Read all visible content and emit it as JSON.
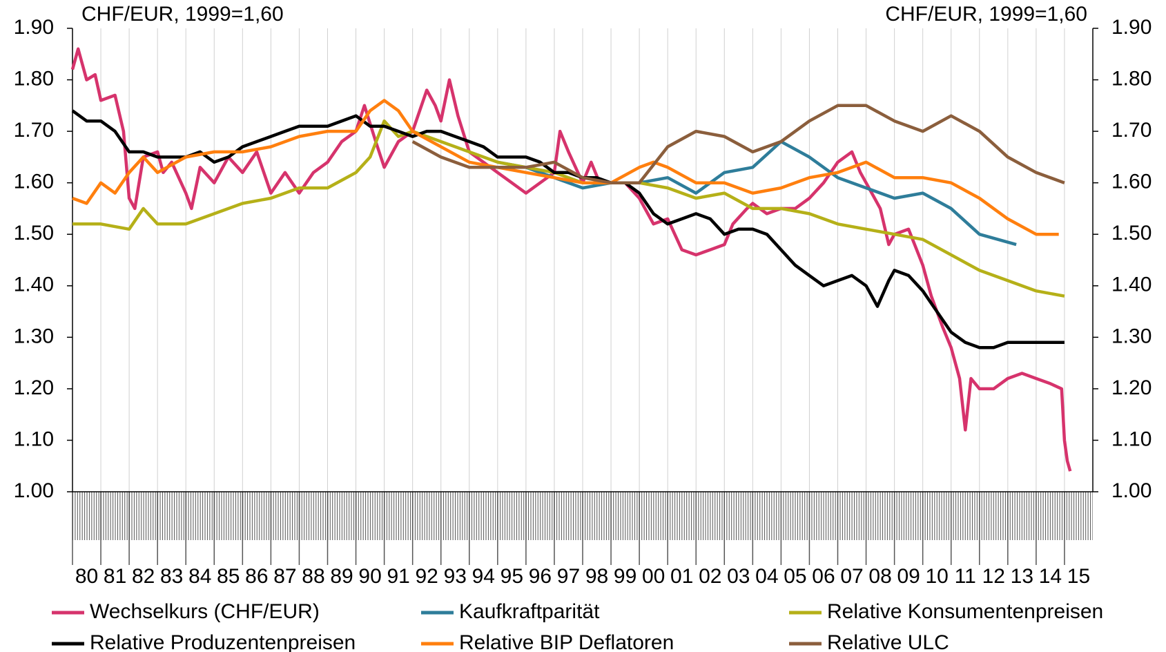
{
  "chart_data": {
    "type": "line",
    "y_label": "CHF/EUR, 1999=1,60",
    "y2_label": "CHF/EUR, 1999=1,60",
    "xlim": [
      1980,
      2016
    ],
    "xticks": [
      {
        "value": 1980,
        "label": "80"
      },
      {
        "value": 1981,
        "label": "81"
      },
      {
        "value": 1982,
        "label": "82"
      },
      {
        "value": 1983,
        "label": "83"
      },
      {
        "value": 1984,
        "label": "84"
      },
      {
        "value": 1985,
        "label": "85"
      },
      {
        "value": 1986,
        "label": "86"
      },
      {
        "value": 1987,
        "label": "87"
      },
      {
        "value": 1988,
        "label": "88"
      },
      {
        "value": 1989,
        "label": "89"
      },
      {
        "value": 1990,
        "label": "90"
      },
      {
        "value": 1991,
        "label": "91"
      },
      {
        "value": 1992,
        "label": "92"
      },
      {
        "value": 1993,
        "label": "93"
      },
      {
        "value": 1994,
        "label": "94"
      },
      {
        "value": 1995,
        "label": "95"
      },
      {
        "value": 1996,
        "label": "96"
      },
      {
        "value": 1997,
        "label": "97"
      },
      {
        "value": 1998,
        "label": "98"
      },
      {
        "value": 1999,
        "label": "99"
      },
      {
        "value": 2000,
        "label": "00"
      },
      {
        "value": 2001,
        "label": "01"
      },
      {
        "value": 2002,
        "label": "02"
      },
      {
        "value": 2003,
        "label": "03"
      },
      {
        "value": 2004,
        "label": "04"
      },
      {
        "value": 2005,
        "label": "05"
      },
      {
        "value": 2006,
        "label": "06"
      },
      {
        "value": 2007,
        "label": "07"
      },
      {
        "value": 2008,
        "label": "08"
      },
      {
        "value": 2009,
        "label": "09"
      },
      {
        "value": 2010,
        "label": "10"
      },
      {
        "value": 2011,
        "label": "11"
      },
      {
        "value": 2012,
        "label": "12"
      },
      {
        "value": 2013,
        "label": "13"
      },
      {
        "value": 2014,
        "label": "14"
      },
      {
        "value": 2015,
        "label": "15"
      }
    ],
    "ylim": [
      1.0,
      1.9
    ],
    "yticks": [
      {
        "value": 1.0,
        "label": "1.00"
      },
      {
        "value": 1.1,
        "label": "1.10"
      },
      {
        "value": 1.2,
        "label": "1.20"
      },
      {
        "value": 1.3,
        "label": "1.30"
      },
      {
        "value": 1.4,
        "label": "1.40"
      },
      {
        "value": 1.5,
        "label": "1.50"
      },
      {
        "value": 1.6,
        "label": "1.60"
      },
      {
        "value": 1.7,
        "label": "1.70"
      },
      {
        "value": 1.8,
        "label": "1.80"
      },
      {
        "value": 1.9,
        "label": "1.90"
      }
    ],
    "y2lim": [
      1.0,
      1.9
    ],
    "y2ticks": [
      {
        "value": 1.0,
        "label": "1.00"
      },
      {
        "value": 1.1,
        "label": "1.10"
      },
      {
        "value": 1.2,
        "label": "1.20"
      },
      {
        "value": 1.3,
        "label": "1.30"
      },
      {
        "value": 1.4,
        "label": "1.40"
      },
      {
        "value": 1.5,
        "label": "1.50"
      },
      {
        "value": 1.6,
        "label": "1.60"
      },
      {
        "value": 1.7,
        "label": "1.70"
      },
      {
        "value": 1.8,
        "label": "1.80"
      },
      {
        "value": 1.9,
        "label": "1.90"
      }
    ],
    "grid": true,
    "series": [
      {
        "name": "Wechselkurs (CHF/EUR)",
        "color": "#d6336c",
        "x": [
          1980,
          1980.2,
          1980.5,
          1980.8,
          1981,
          1981.5,
          1981.8,
          1982,
          1982.2,
          1982.5,
          1983,
          1983.2,
          1983.5,
          1984,
          1984.2,
          1984.5,
          1985,
          1985.5,
          1986,
          1986.5,
          1987,
          1987.5,
          1988,
          1988.5,
          1989,
          1989.5,
          1990,
          1990.3,
          1990.7,
          1991,
          1991.5,
          1992,
          1992.5,
          1992.8,
          1993,
          1993.3,
          1993.6,
          1994,
          1994.5,
          1995,
          1995.5,
          1996,
          1996.5,
          1997,
          1997.2,
          1997.5,
          1998,
          1998.3,
          1998.6,
          1999,
          1999.5,
          2000,
          2000.5,
          2001,
          2001.5,
          2002,
          2002.5,
          2003,
          2003.3,
          2003.8,
          2004,
          2004.5,
          2005,
          2005.5,
          2006,
          2006.5,
          2007,
          2007.5,
          2007.8,
          2008,
          2008.5,
          2008.8,
          2009,
          2009.5,
          2010,
          2010.3,
          2010.7,
          2011,
          2011.3,
          2011.5,
          2011.7,
          2012,
          2012.5,
          2013,
          2013.5,
          2014,
          2014.5,
          2014.9,
          2015,
          2015.1,
          2015.2
        ],
        "values": [
          1.82,
          1.86,
          1.8,
          1.81,
          1.76,
          1.77,
          1.7,
          1.57,
          1.55,
          1.65,
          1.66,
          1.62,
          1.64,
          1.58,
          1.55,
          1.63,
          1.6,
          1.65,
          1.62,
          1.66,
          1.58,
          1.62,
          1.58,
          1.62,
          1.64,
          1.68,
          1.7,
          1.75,
          1.68,
          1.63,
          1.68,
          1.7,
          1.78,
          1.75,
          1.72,
          1.8,
          1.73,
          1.66,
          1.64,
          1.62,
          1.6,
          1.58,
          1.6,
          1.62,
          1.7,
          1.66,
          1.6,
          1.64,
          1.6,
          1.6,
          1.6,
          1.57,
          1.52,
          1.53,
          1.47,
          1.46,
          1.47,
          1.48,
          1.52,
          1.55,
          1.56,
          1.54,
          1.55,
          1.55,
          1.57,
          1.6,
          1.64,
          1.66,
          1.62,
          1.6,
          1.55,
          1.48,
          1.5,
          1.51,
          1.44,
          1.38,
          1.32,
          1.28,
          1.22,
          1.12,
          1.22,
          1.2,
          1.2,
          1.22,
          1.23,
          1.22,
          1.21,
          1.2,
          1.1,
          1.06,
          1.04
        ]
      },
      {
        "name": "Kaufkraftparität",
        "color": "#2e7d9a",
        "x": [
          1995,
          1996,
          1997,
          1998,
          1999,
          2000,
          2001,
          2002,
          2003,
          2004,
          2005,
          2006,
          2007,
          2008,
          2009,
          2010,
          2011,
          2012,
          2013.3
        ],
        "values": [
          1.64,
          1.63,
          1.61,
          1.59,
          1.6,
          1.6,
          1.61,
          1.58,
          1.62,
          1.63,
          1.68,
          1.65,
          1.61,
          1.59,
          1.57,
          1.58,
          1.55,
          1.5,
          1.48
        ]
      },
      {
        "name": "Relative Konsumentenpreisen",
        "color": "#b5b018",
        "x": [
          1980,
          1981,
          1982,
          1982.5,
          1983,
          1984,
          1985,
          1986,
          1987,
          1988,
          1989,
          1990,
          1990.5,
          1991,
          1991.5,
          1992,
          1993,
          1994,
          1995,
          1996,
          1997,
          1998,
          1999,
          2000,
          2001,
          2002,
          2003,
          2004,
          2005,
          2006,
          2007,
          2008,
          2009,
          2010,
          2011,
          2012,
          2013,
          2014,
          2015
        ],
        "values": [
          1.52,
          1.52,
          1.51,
          1.55,
          1.52,
          1.52,
          1.54,
          1.56,
          1.57,
          1.59,
          1.59,
          1.62,
          1.65,
          1.72,
          1.69,
          1.7,
          1.68,
          1.66,
          1.64,
          1.63,
          1.62,
          1.6,
          1.6,
          1.6,
          1.59,
          1.57,
          1.58,
          1.55,
          1.55,
          1.54,
          1.52,
          1.51,
          1.5,
          1.49,
          1.46,
          1.43,
          1.41,
          1.39,
          1.38
        ]
      },
      {
        "name": "Relative Produzentenpreisen",
        "color": "#000000",
        "x": [
          1980,
          1980.5,
          1981,
          1981.5,
          1982,
          1982.5,
          1983,
          1984,
          1984.5,
          1985,
          1985.5,
          1986,
          1986.5,
          1987,
          1987.5,
          1988,
          1988.5,
          1989,
          1989.5,
          1990,
          1990.5,
          1991,
          1991.5,
          1992,
          1992.5,
          1993,
          1993.5,
          1994,
          1994.5,
          1995,
          1995.5,
          1996,
          1996.5,
          1997,
          1997.5,
          1998,
          1998.5,
          1999,
          1999.5,
          2000,
          2000.5,
          2001,
          2001.5,
          2002,
          2002.5,
          2003,
          2003.5,
          2004,
          2004.5,
          2005,
          2005.5,
          2006,
          2006.5,
          2007,
          2007.5,
          2008,
          2008.4,
          2008.8,
          2009,
          2009.5,
          2010,
          2010.5,
          2011,
          2011.5,
          2012,
          2012.5,
          2013,
          2013.5,
          2014,
          2014.5,
          2015
        ],
        "values": [
          1.74,
          1.72,
          1.72,
          1.7,
          1.66,
          1.66,
          1.65,
          1.65,
          1.66,
          1.64,
          1.65,
          1.67,
          1.68,
          1.69,
          1.7,
          1.71,
          1.71,
          1.71,
          1.72,
          1.73,
          1.71,
          1.71,
          1.7,
          1.69,
          1.7,
          1.7,
          1.69,
          1.68,
          1.67,
          1.65,
          1.65,
          1.65,
          1.64,
          1.62,
          1.62,
          1.61,
          1.61,
          1.6,
          1.6,
          1.58,
          1.54,
          1.52,
          1.53,
          1.54,
          1.53,
          1.5,
          1.51,
          1.51,
          1.5,
          1.47,
          1.44,
          1.42,
          1.4,
          1.41,
          1.42,
          1.4,
          1.36,
          1.41,
          1.43,
          1.42,
          1.39,
          1.35,
          1.31,
          1.29,
          1.28,
          1.28,
          1.29,
          1.29,
          1.29,
          1.29,
          1.29
        ]
      },
      {
        "name": "Relative BIP Deflatoren",
        "color": "#ff7f0e",
        "x": [
          1980,
          1980.5,
          1981,
          1981.5,
          1982,
          1982.5,
          1983,
          1984,
          1985,
          1986,
          1987,
          1988,
          1989,
          1990,
          1990.5,
          1991,
          1991.5,
          1992,
          1993,
          1994,
          1995,
          1996,
          1997,
          1998,
          1999,
          2000,
          2000.5,
          2001,
          2002,
          2003,
          2004,
          2005,
          2006,
          2007,
          2008,
          2009,
          2010,
          2011,
          2012,
          2013,
          2014,
          2014.8
        ],
        "values": [
          1.57,
          1.56,
          1.6,
          1.58,
          1.62,
          1.65,
          1.62,
          1.65,
          1.66,
          1.66,
          1.67,
          1.69,
          1.7,
          1.7,
          1.74,
          1.76,
          1.74,
          1.7,
          1.67,
          1.64,
          1.63,
          1.62,
          1.61,
          1.6,
          1.6,
          1.63,
          1.64,
          1.63,
          1.6,
          1.6,
          1.58,
          1.59,
          1.61,
          1.62,
          1.64,
          1.61,
          1.61,
          1.6,
          1.57,
          1.53,
          1.5,
          1.5
        ]
      },
      {
        "name": "Relative ULC",
        "color": "#8b5e3c",
        "x": [
          1992,
          1993,
          1994,
          1995,
          1996,
          1997,
          1998,
          1999,
          2000,
          2001,
          2002,
          2003,
          2004,
          2005,
          2006,
          2007,
          2008,
          2009,
          2010,
          2011,
          2012,
          2013,
          2014,
          2015
        ],
        "values": [
          1.68,
          1.65,
          1.63,
          1.63,
          1.63,
          1.64,
          1.61,
          1.6,
          1.6,
          1.67,
          1.7,
          1.69,
          1.66,
          1.68,
          1.72,
          1.75,
          1.75,
          1.72,
          1.7,
          1.73,
          1.7,
          1.65,
          1.62,
          1.6
        ]
      }
    ]
  }
}
